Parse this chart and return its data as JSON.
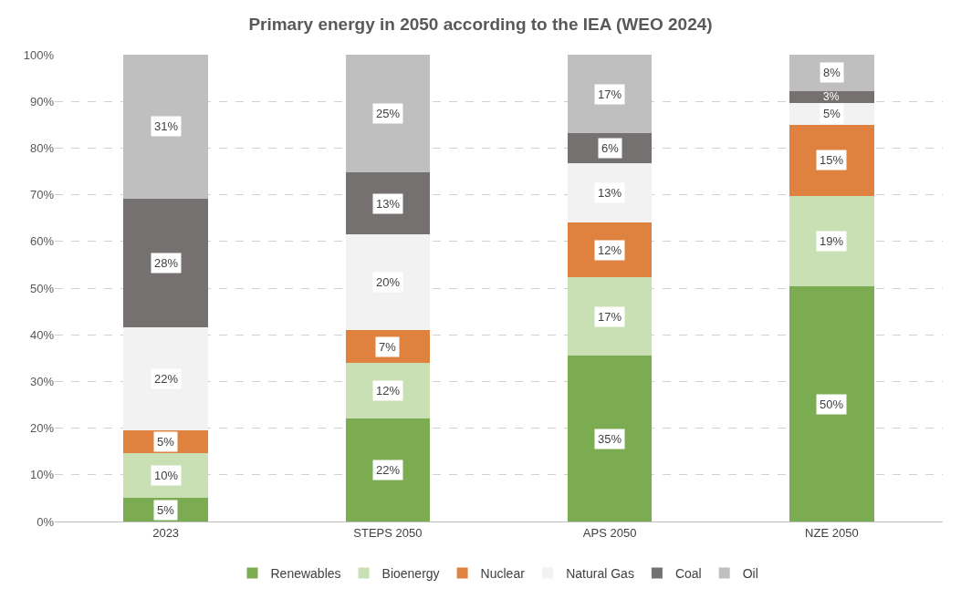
{
  "chart_data": {
    "type": "bar",
    "title": "Primary energy in 2050 according to the IEA (WEO 2024)",
    "stacked": true,
    "categories": [
      "2023",
      "STEPS 2050",
      "APS 2050",
      "NZE 2050"
    ],
    "series": [
      {
        "name": "Renewables",
        "color": "#7cac52",
        "values": [
          5,
          22,
          35.5,
          50.3
        ],
        "value_labels": [
          "5%",
          "22%",
          "35%",
          "50%"
        ]
      },
      {
        "name": "Bioenergy",
        "color": "#c9e0b4",
        "values": [
          9.7,
          12,
          16.8,
          19.5
        ],
        "value_labels": [
          "10%",
          "12%",
          "17%",
          "19%"
        ]
      },
      {
        "name": "Nuclear",
        "color": "#e0823f",
        "values": [
          4.9,
          7,
          11.7,
          15.2
        ],
        "value_labels": [
          "5%",
          "7%",
          "12%",
          "15%"
        ]
      },
      {
        "name": "Natural Gas",
        "color": "#f2f2f2",
        "values": [
          22,
          20.5,
          12.8,
          4.7
        ],
        "value_labels": [
          "22%",
          "20%",
          "13%",
          "5%"
        ]
      },
      {
        "name": "Coal",
        "color": "#767171",
        "values": [
          27.6,
          13.3,
          6.4,
          2.5
        ],
        "value_labels": [
          "28%",
          "13%",
          "6%",
          "3%"
        ]
      },
      {
        "name": "Oil",
        "color": "#bfbfbf",
        "values": [
          30.8,
          25.2,
          16.8,
          7.8
        ],
        "value_labels": [
          "31%",
          "25%",
          "17%",
          "8%"
        ]
      }
    ],
    "ylim": [
      0,
      100
    ],
    "yticks": [
      {
        "value": 0,
        "label": "0%"
      },
      {
        "value": 10,
        "label": "10%"
      },
      {
        "value": 20,
        "label": "20%"
      },
      {
        "value": 30,
        "label": "30%"
      },
      {
        "value": 40,
        "label": "40%"
      },
      {
        "value": 50,
        "label": "50%"
      },
      {
        "value": 60,
        "label": "60%"
      },
      {
        "value": 70,
        "label": "70%"
      },
      {
        "value": 80,
        "label": "80%"
      },
      {
        "value": 90,
        "label": "90%"
      },
      {
        "value": 100,
        "label": "100%"
      }
    ],
    "grid": "y",
    "legend": "bottom"
  }
}
